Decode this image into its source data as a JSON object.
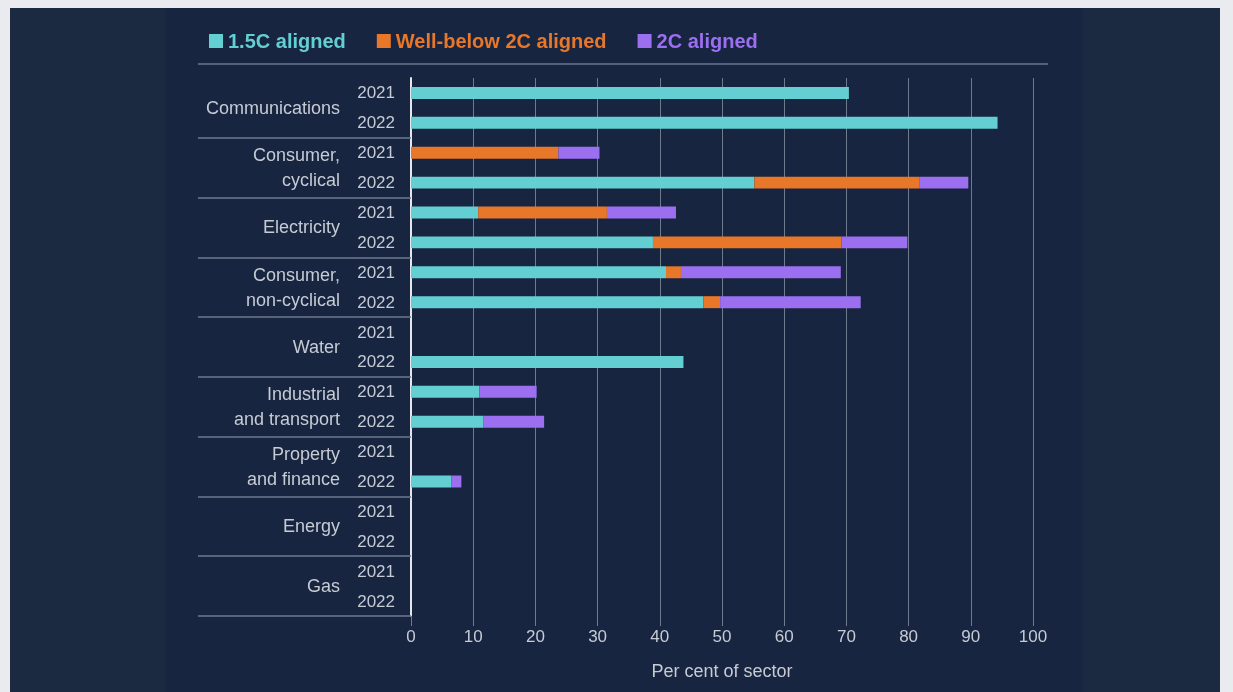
{
  "chart_data": {
    "type": "bar",
    "orientation": "horizontal",
    "stacked": true,
    "categories": [
      "2021",
      "2022",
      "2021",
      "2022",
      "2021",
      "2022",
      "2021",
      "2022",
      "2021",
      "2022",
      "2021",
      "2022",
      "2021",
      "2022",
      "2021",
      "2022",
      "2021",
      "2022"
    ],
    "annotations": [
      "Communications",
      "Consumer,\ncyclical",
      "Electricity",
      "Consumer,\nnon-cyclical",
      "Water",
      "Industrial\nand transport",
      "Property\nand finance",
      "Energy",
      "Gas"
    ],
    "series": [
      {
        "name": "1.5C aligned",
        "color": "#63cfd3",
        "values": [
          70.4,
          94.3,
          null,
          55.2,
          10.8,
          38.9,
          41.0,
          47.0,
          null,
          43.8,
          11.0,
          11.6,
          null,
          6.5,
          null,
          null,
          null,
          null
        ]
      },
      {
        "name": "Well-below 2C aligned",
        "color": "#e8772a",
        "values": [
          null,
          null,
          23.7,
          26.5,
          20.7,
          30.3,
          2.4,
          2.7,
          null,
          null,
          null,
          null,
          null,
          null,
          null,
          null,
          null,
          null
        ]
      },
      {
        "name": "2C aligned",
        "color": "#9b6ff0",
        "values": [
          null,
          null,
          6.6,
          7.9,
          11.1,
          10.6,
          25.7,
          22.6,
          null,
          null,
          9.2,
          9.8,
          null,
          1.6,
          null,
          null,
          null,
          null
        ]
      }
    ],
    "xlabel": "Per cent of sector",
    "xlim": [
      0,
      100
    ],
    "xticks": [
      0,
      10,
      20,
      30,
      40,
      50,
      60,
      70,
      80,
      90,
      100
    ],
    "grid": "x",
    "legend": "top left"
  }
}
